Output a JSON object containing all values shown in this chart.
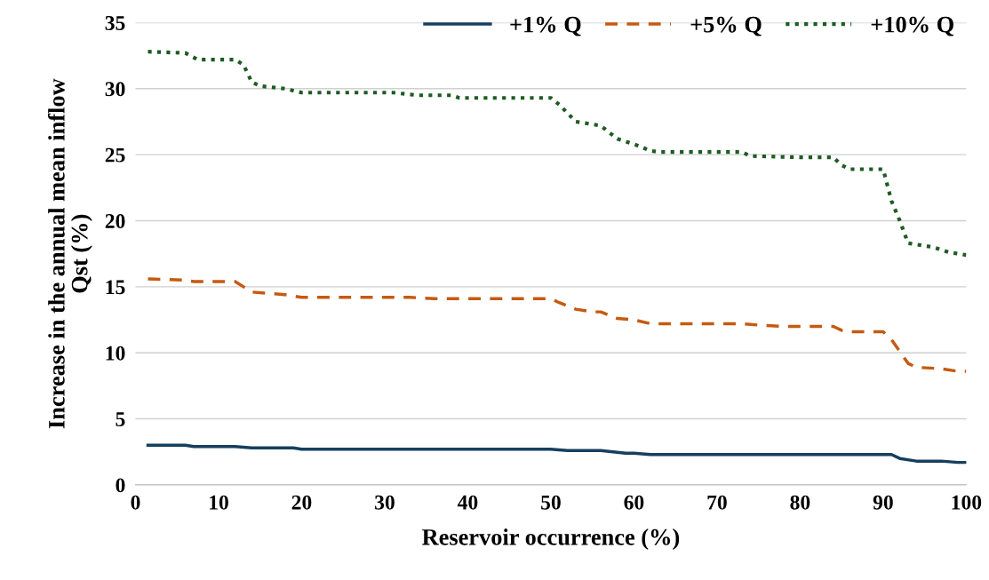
{
  "chart_data": {
    "type": "line",
    "xlabel": "Reservoir occurrence (%)",
    "ylabel": "Increase in the annual mean inflow\nQst (%)",
    "xlim": [
      0,
      100
    ],
    "xticks": [
      0,
      10,
      20,
      30,
      40,
      50,
      60,
      70,
      80,
      90,
      100
    ],
    "ylim": [
      0,
      35
    ],
    "yticks": [
      0,
      5,
      10,
      15,
      20,
      25,
      30,
      35
    ],
    "grid": "y",
    "legend": "top right",
    "series": [
      {
        "name": "+1% Q",
        "color": "#163f5f",
        "line_style": "solid",
        "x": [
          1.5,
          6,
          7,
          12,
          14,
          19,
          20,
          50,
          52,
          56,
          59,
          60,
          62,
          89,
          91,
          92,
          94,
          97,
          99,
          100
        ],
        "values": [
          3.0,
          3.0,
          2.9,
          2.9,
          2.8,
          2.8,
          2.7,
          2.7,
          2.6,
          2.6,
          2.4,
          2.4,
          2.3,
          2.3,
          2.3,
          2.0,
          1.8,
          1.8,
          1.7,
          1.7
        ]
      },
      {
        "name": "+5% Q",
        "color": "#c55a11",
        "line_style": "dashed",
        "x": [
          1.5,
          6,
          7,
          12,
          13,
          14,
          18,
          20,
          33,
          36,
          50,
          51,
          53,
          55,
          56,
          58,
          60,
          62,
          63,
          73,
          75,
          78,
          84,
          85,
          86,
          90,
          91,
          93,
          94,
          97,
          99,
          100
        ],
        "values": [
          15.6,
          15.5,
          15.4,
          15.4,
          15.0,
          14.6,
          14.4,
          14.2,
          14.2,
          14.1,
          14.1,
          13.8,
          13.3,
          13.1,
          13.1,
          12.6,
          12.5,
          12.2,
          12.2,
          12.2,
          12.1,
          12.0,
          12.0,
          11.7,
          11.6,
          11.6,
          11.0,
          9.2,
          8.9,
          8.8,
          8.6,
          8.6
        ]
      },
      {
        "name": "+10% Q",
        "color": "#1e5b24",
        "line_style": "dotted",
        "x": [
          1.5,
          6,
          7.5,
          12,
          13,
          14,
          15,
          18,
          20,
          31,
          34,
          38,
          39,
          50,
          51,
          53,
          55,
          56,
          58,
          60,
          62,
          63,
          73,
          74,
          80,
          84,
          85,
          86,
          90,
          91,
          92,
          93,
          96,
          98,
          100
        ],
        "values": [
          32.8,
          32.7,
          32.2,
          32.2,
          31.8,
          30.5,
          30.2,
          30.0,
          29.7,
          29.7,
          29.5,
          29.5,
          29.3,
          29.3,
          28.8,
          27.5,
          27.3,
          27.2,
          26.2,
          25.8,
          25.3,
          25.2,
          25.2,
          24.9,
          24.8,
          24.8,
          24.2,
          23.9,
          23.9,
          21.5,
          20.0,
          18.3,
          18.0,
          17.6,
          17.4
        ]
      }
    ]
  }
}
